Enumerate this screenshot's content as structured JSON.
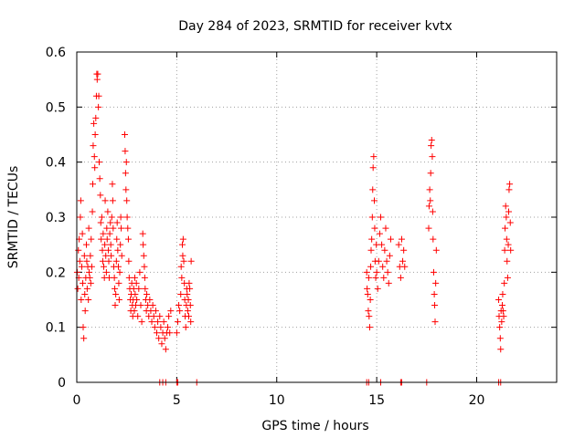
{
  "chart_data": {
    "type": "scatter",
    "title": "Day 284 of 2023, SRMTID for receiver kvtx",
    "xlabel": "GPS time / hours",
    "ylabel": "SRMTID / TECUs",
    "xlim": [
      0,
      24
    ],
    "ylim": [
      0,
      0.6
    ],
    "xticks": [
      0,
      5,
      10,
      15,
      20
    ],
    "xtick_labels": [
      "0",
      "5",
      "10",
      "15",
      "20"
    ],
    "yticks": [
      0,
      0.1,
      0.2,
      0.3,
      0.4,
      0.5,
      0.6
    ],
    "ytick_labels": [
      "0",
      "0.1",
      "0.2",
      "0.3",
      "0.4",
      "0.5",
      "0.6"
    ],
    "grid": true,
    "marker": "plus",
    "color": "#ff0000",
    "series": [
      {
        "name": "SRMTID",
        "points": [
          [
            0.02,
            0.2
          ],
          [
            0.05,
            0.17
          ],
          [
            0.08,
            0.24
          ],
          [
            0.1,
            0.19
          ],
          [
            0.12,
            0.26
          ],
          [
            0.15,
            0.22
          ],
          [
            0.18,
            0.3
          ],
          [
            0.2,
            0.33
          ],
          [
            0.22,
            0.15
          ],
          [
            0.25,
            0.21
          ],
          [
            0.28,
            0.27
          ],
          [
            0.3,
            0.18
          ],
          [
            0.32,
            0.1
          ],
          [
            0.35,
            0.08
          ],
          [
            0.38,
            0.23
          ],
          [
            0.4,
            0.16
          ],
          [
            0.42,
            0.13
          ],
          [
            0.45,
            0.19
          ],
          [
            0.48,
            0.25
          ],
          [
            0.5,
            0.22
          ],
          [
            0.52,
            0.17
          ],
          [
            0.55,
            0.21
          ],
          [
            0.58,
            0.15
          ],
          [
            0.6,
            0.28
          ],
          [
            0.62,
            0.2
          ],
          [
            0.65,
            0.19
          ],
          [
            0.68,
            0.23
          ],
          [
            0.7,
            0.18
          ],
          [
            0.72,
            0.26
          ],
          [
            0.75,
            0.21
          ],
          [
            0.78,
            0.31
          ],
          [
            0.8,
            0.36
          ],
          [
            0.82,
            0.43
          ],
          [
            0.85,
            0.47
          ],
          [
            0.88,
            0.41
          ],
          [
            0.9,
            0.39
          ],
          [
            0.92,
            0.45
          ],
          [
            0.95,
            0.48
          ],
          [
            0.98,
            0.52
          ],
          [
            1.0,
            0.56
          ],
          [
            1.02,
            0.55
          ],
          [
            1.05,
            0.56
          ],
          [
            1.08,
            0.5
          ],
          [
            1.1,
            0.52
          ],
          [
            1.12,
            0.4
          ],
          [
            1.15,
            0.37
          ],
          [
            1.18,
            0.34
          ],
          [
            1.2,
            0.29
          ],
          [
            1.22,
            0.26
          ],
          [
            1.25,
            0.3
          ],
          [
            1.28,
            0.24
          ],
          [
            1.3,
            0.22
          ],
          [
            1.32,
            0.27
          ],
          [
            1.35,
            0.21
          ],
          [
            1.38,
            0.19
          ],
          [
            1.4,
            0.25
          ],
          [
            1.42,
            0.33
          ],
          [
            1.45,
            0.23
          ],
          [
            1.48,
            0.2
          ],
          [
            1.5,
            0.28
          ],
          [
            1.52,
            0.26
          ],
          [
            1.55,
            0.31
          ],
          [
            1.58,
            0.24
          ],
          [
            1.6,
            0.22
          ],
          [
            1.62,
            0.19
          ],
          [
            1.65,
            0.27
          ],
          [
            1.68,
            0.29
          ],
          [
            1.7,
            0.25
          ],
          [
            1.72,
            0.23
          ],
          [
            1.75,
            0.3
          ],
          [
            1.78,
            0.36
          ],
          [
            1.8,
            0.33
          ],
          [
            1.82,
            0.28
          ],
          [
            1.85,
            0.21
          ],
          [
            1.88,
            0.19
          ],
          [
            1.9,
            0.17
          ],
          [
            1.92,
            0.14
          ],
          [
            1.95,
            0.16
          ],
          [
            1.98,
            0.22
          ],
          [
            2.0,
            0.26
          ],
          [
            2.02,
            0.29
          ],
          [
            2.05,
            0.24
          ],
          [
            2.08,
            0.21
          ],
          [
            2.1,
            0.18
          ],
          [
            2.12,
            0.15
          ],
          [
            2.15,
            0.2
          ],
          [
            2.18,
            0.25
          ],
          [
            2.2,
            0.3
          ],
          [
            2.22,
            0.28
          ],
          [
            2.25,
            0.23
          ],
          [
            2.4,
            0.45
          ],
          [
            2.42,
            0.42
          ],
          [
            2.44,
            0.38
          ],
          [
            2.46,
            0.35
          ],
          [
            2.48,
            0.4
          ],
          [
            2.5,
            0.33
          ],
          [
            2.52,
            0.3
          ],
          [
            2.55,
            0.28
          ],
          [
            2.58,
            0.26
          ],
          [
            2.6,
            0.22
          ],
          [
            2.62,
            0.19
          ],
          [
            2.65,
            0.17
          ],
          [
            2.68,
            0.15
          ],
          [
            2.7,
            0.13
          ],
          [
            2.72,
            0.16
          ],
          [
            2.75,
            0.18
          ],
          [
            2.78,
            0.14
          ],
          [
            2.8,
            0.12
          ],
          [
            2.82,
            0.15
          ],
          [
            2.85,
            0.17
          ],
          [
            2.88,
            0.13
          ],
          [
            2.9,
            0.19
          ],
          [
            2.92,
            0.16
          ],
          [
            2.95,
            0.14
          ],
          [
            2.98,
            0.18
          ],
          [
            3.0,
            0.15
          ],
          [
            3.05,
            0.12
          ],
          [
            3.1,
            0.17
          ],
          [
            3.15,
            0.2
          ],
          [
            3.2,
            0.14
          ],
          [
            3.25,
            0.11
          ],
          [
            3.3,
            0.27
          ],
          [
            3.32,
            0.25
          ],
          [
            3.35,
            0.23
          ],
          [
            3.38,
            0.21
          ],
          [
            3.4,
            0.19
          ],
          [
            3.42,
            0.17
          ],
          [
            3.45,
            0.15
          ],
          [
            3.48,
            0.13
          ],
          [
            3.5,
            0.16
          ],
          [
            3.55,
            0.14
          ],
          [
            3.6,
            0.12
          ],
          [
            3.65,
            0.15
          ],
          [
            3.7,
            0.13
          ],
          [
            3.75,
            0.11
          ],
          [
            3.8,
            0.14
          ],
          [
            3.85,
            0.12
          ],
          [
            3.9,
            0.1
          ],
          [
            3.95,
            0.13
          ],
          [
            4.0,
            0.09
          ],
          [
            4.05,
            0.11
          ],
          [
            4.1,
            0.08
          ],
          [
            4.15,
            0.12
          ],
          [
            4.2,
            0.1
          ],
          [
            4.25,
            0.07
          ],
          [
            4.3,
            0.09
          ],
          [
            4.35,
            0.11
          ],
          [
            4.4,
            0.08
          ],
          [
            4.45,
            0.06
          ],
          [
            4.5,
            0.09
          ],
          [
            4.55,
            0.1
          ],
          [
            4.6,
            0.12
          ],
          [
            4.65,
            0.09
          ],
          [
            4.7,
            0.13
          ],
          [
            5.0,
            0.09
          ],
          [
            5.05,
            0.11
          ],
          [
            5.1,
            0.14
          ],
          [
            5.15,
            0.13
          ],
          [
            5.2,
            0.16
          ],
          [
            5.22,
            0.21
          ],
          [
            5.25,
            0.19
          ],
          [
            5.28,
            0.25
          ],
          [
            5.3,
            0.23
          ],
          [
            5.32,
            0.26
          ],
          [
            5.35,
            0.22
          ],
          [
            5.38,
            0.18
          ],
          [
            5.4,
            0.15
          ],
          [
            5.42,
            0.12
          ],
          [
            5.45,
            0.1
          ],
          [
            5.48,
            0.14
          ],
          [
            5.5,
            0.17
          ],
          [
            5.52,
            0.16
          ],
          [
            5.55,
            0.13
          ],
          [
            5.58,
            0.15
          ],
          [
            5.6,
            0.12
          ],
          [
            5.62,
            0.18
          ],
          [
            5.65,
            0.17
          ],
          [
            5.68,
            0.14
          ],
          [
            5.7,
            0.11
          ],
          [
            5.72,
            0.22
          ],
          [
            14.5,
            0.2
          ],
          [
            14.52,
            0.17
          ],
          [
            14.55,
            0.16
          ],
          [
            14.58,
            0.13
          ],
          [
            14.6,
            0.19
          ],
          [
            14.62,
            0.12
          ],
          [
            14.65,
            0.1
          ],
          [
            14.68,
            0.15
          ],
          [
            14.7,
            0.21
          ],
          [
            14.72,
            0.24
          ],
          [
            14.75,
            0.26
          ],
          [
            14.78,
            0.3
          ],
          [
            14.8,
            0.35
          ],
          [
            14.82,
            0.39
          ],
          [
            14.85,
            0.41
          ],
          [
            14.88,
            0.33
          ],
          [
            14.9,
            0.28
          ],
          [
            14.92,
            0.22
          ],
          [
            14.95,
            0.19
          ],
          [
            14.98,
            0.25
          ],
          [
            15.0,
            0.2
          ],
          [
            15.05,
            0.17
          ],
          [
            15.1,
            0.22
          ],
          [
            15.15,
            0.27
          ],
          [
            15.2,
            0.3
          ],
          [
            15.25,
            0.25
          ],
          [
            15.3,
            0.21
          ],
          [
            15.35,
            0.19
          ],
          [
            15.4,
            0.24
          ],
          [
            15.45,
            0.28
          ],
          [
            15.5,
            0.22
          ],
          [
            15.55,
            0.2
          ],
          [
            15.6,
            0.18
          ],
          [
            15.65,
            0.23
          ],
          [
            15.7,
            0.26
          ],
          [
            16.1,
            0.25
          ],
          [
            16.15,
            0.21
          ],
          [
            16.2,
            0.19
          ],
          [
            16.25,
            0.26
          ],
          [
            16.3,
            0.22
          ],
          [
            16.35,
            0.24
          ],
          [
            16.4,
            0.21
          ],
          [
            17.6,
            0.28
          ],
          [
            17.62,
            0.32
          ],
          [
            17.65,
            0.35
          ],
          [
            17.68,
            0.33
          ],
          [
            17.7,
            0.38
          ],
          [
            17.72,
            0.43
          ],
          [
            17.75,
            0.44
          ],
          [
            17.78,
            0.41
          ],
          [
            17.8,
            0.31
          ],
          [
            17.82,
            0.26
          ],
          [
            17.85,
            0.2
          ],
          [
            17.88,
            0.16
          ],
          [
            17.9,
            0.14
          ],
          [
            17.92,
            0.11
          ],
          [
            17.95,
            0.18
          ],
          [
            17.98,
            0.24
          ],
          [
            21.1,
            0.15
          ],
          [
            21.12,
            0.12
          ],
          [
            21.15,
            0.1
          ],
          [
            21.18,
            0.08
          ],
          [
            21.2,
            0.06
          ],
          [
            21.22,
            0.13
          ],
          [
            21.25,
            0.11
          ],
          [
            21.28,
            0.14
          ],
          [
            21.3,
            0.16
          ],
          [
            21.32,
            0.13
          ],
          [
            21.35,
            0.12
          ],
          [
            21.38,
            0.18
          ],
          [
            21.4,
            0.24
          ],
          [
            21.42,
            0.28
          ],
          [
            21.45,
            0.32
          ],
          [
            21.48,
            0.3
          ],
          [
            21.5,
            0.26
          ],
          [
            21.52,
            0.22
          ],
          [
            21.55,
            0.19
          ],
          [
            21.58,
            0.25
          ],
          [
            21.6,
            0.31
          ],
          [
            21.62,
            0.35
          ],
          [
            21.65,
            0.36
          ],
          [
            21.68,
            0.29
          ],
          [
            21.7,
            0.24
          ]
        ]
      },
      {
        "name": "zero-value markers",
        "points": [
          [
            4.15,
            0
          ],
          [
            4.3,
            0
          ],
          [
            4.45,
            0
          ],
          [
            5.0,
            0
          ],
          [
            5.05,
            0
          ],
          [
            6.0,
            0
          ],
          [
            14.5,
            0
          ],
          [
            14.6,
            0
          ],
          [
            15.2,
            0
          ],
          [
            16.2,
            0
          ],
          [
            16.25,
            0
          ],
          [
            17.5,
            0
          ],
          [
            21.1,
            0
          ],
          [
            21.2,
            0
          ]
        ]
      }
    ]
  }
}
